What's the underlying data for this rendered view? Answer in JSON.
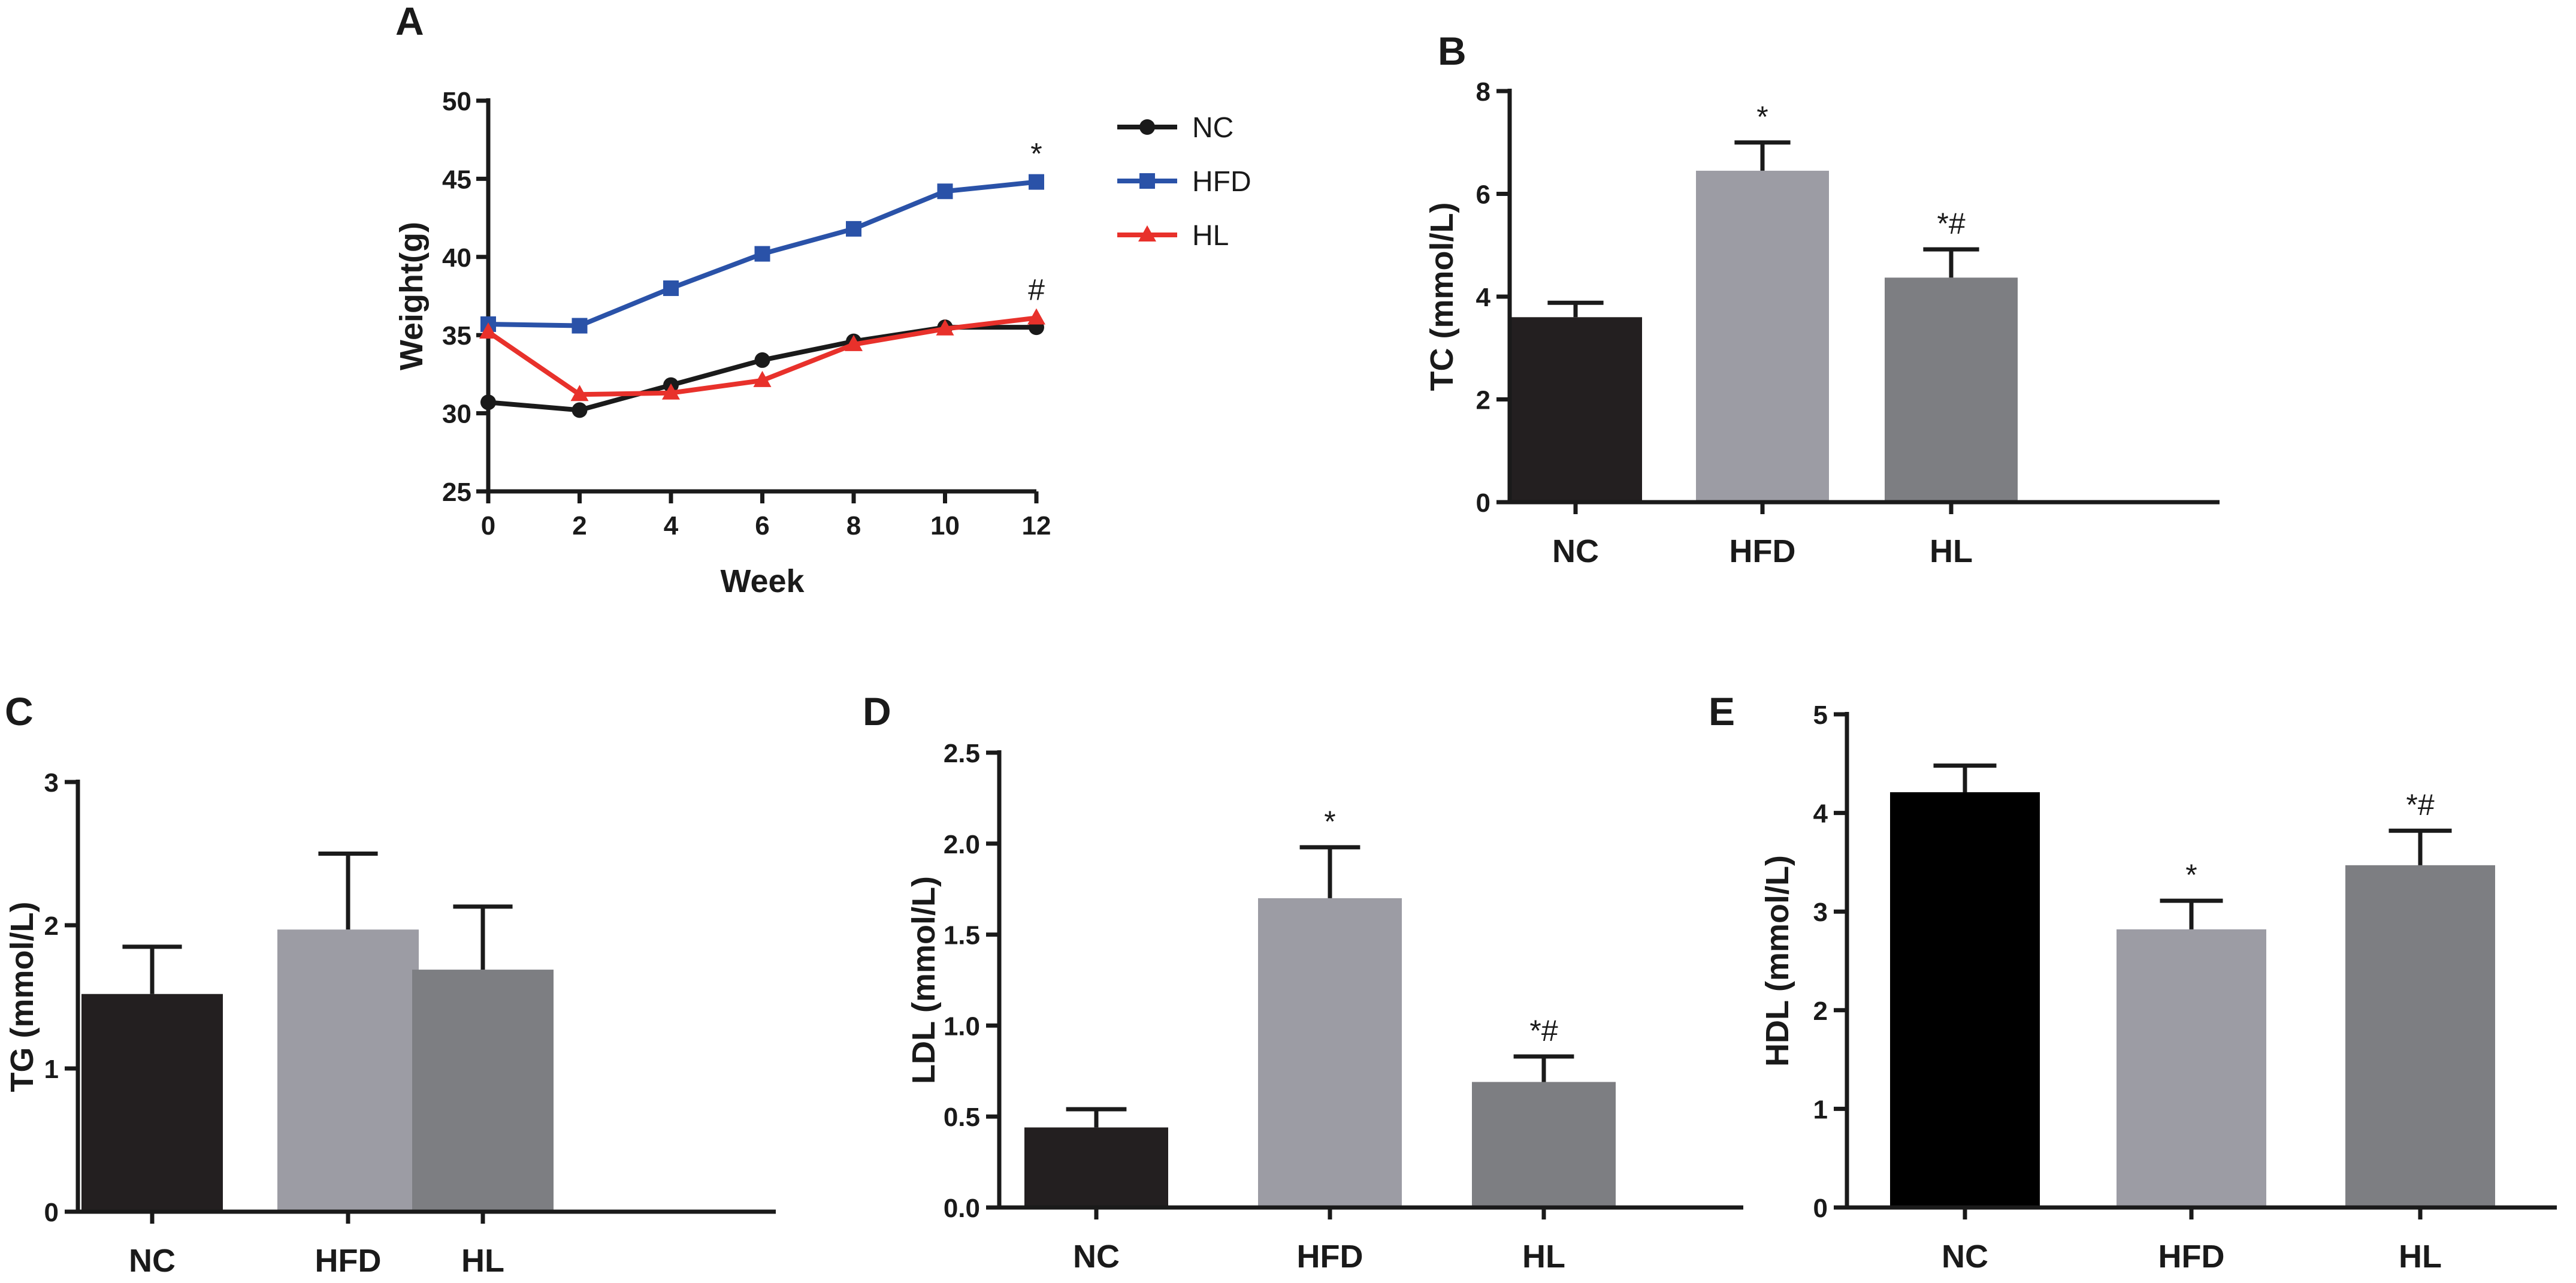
{
  "figure": {
    "panels": {
      "A": "A",
      "B": "B",
      "C": "C",
      "D": "D",
      "E": "E"
    }
  },
  "chart_data": [
    {
      "id": "A",
      "type": "line",
      "title": "",
      "xlabel": "Week",
      "ylabel": "Weight(g)",
      "xlim": [
        0,
        12
      ],
      "ylim": [
        25,
        50
      ],
      "x": [
        0,
        2,
        4,
        6,
        8,
        10,
        12
      ],
      "xticks": [
        "0",
        "2",
        "4",
        "6",
        "8",
        "10",
        "12"
      ],
      "yticks": [
        "25",
        "30",
        "35",
        "40",
        "45",
        "50"
      ],
      "legend_position": "right",
      "series": [
        {
          "name": "NC",
          "color": "#1a1a1a",
          "marker": "circle",
          "values": [
            30.7,
            30.2,
            31.8,
            33.4,
            34.6,
            35.5,
            35.5
          ]
        },
        {
          "name": "HFD",
          "color": "#2a52a8",
          "marker": "square",
          "values": [
            35.7,
            35.6,
            38.0,
            40.2,
            41.8,
            44.2,
            44.8
          ]
        },
        {
          "name": "HL",
          "color": "#e8312b",
          "marker": "triangle",
          "values": [
            35.2,
            31.2,
            31.3,
            32.1,
            34.4,
            35.4,
            36.1
          ]
        }
      ],
      "annotations": [
        {
          "x": 12,
          "y": 44.8,
          "text": "*"
        },
        {
          "x": 12,
          "y": 36.1,
          "text": "#"
        }
      ]
    },
    {
      "id": "B",
      "type": "bar",
      "categories": [
        "NC",
        "HFD",
        "HL"
      ],
      "values": [
        3.6,
        6.45,
        4.37
      ],
      "errors": [
        0.28,
        0.55,
        0.55
      ],
      "colors": [
        "#231f20",
        "#9c9ca4",
        "#7d7e82"
      ],
      "annotations": [
        "",
        "*",
        "*#"
      ],
      "title": "",
      "xlabel": "",
      "ylabel": "TC (mmol/L)",
      "ylim": [
        0,
        8
      ],
      "yticks": [
        "0",
        "2",
        "4",
        "6",
        "8"
      ]
    },
    {
      "id": "C",
      "type": "bar",
      "categories": [
        "NC",
        "HFD",
        "HL"
      ],
      "values": [
        1.52,
        1.97,
        1.69
      ],
      "errors": [
        0.33,
        0.53,
        0.44
      ],
      "colors": [
        "#231f20",
        "#9c9ca4",
        "#7d7e82"
      ],
      "annotations": [
        "",
        "",
        ""
      ],
      "title": "",
      "xlabel": "",
      "ylabel": "TG (mmol/L)",
      "ylim": [
        0,
        3
      ],
      "yticks": [
        "0",
        "1",
        "2",
        "3"
      ]
    },
    {
      "id": "D",
      "type": "bar",
      "categories": [
        "NC",
        "HFD",
        "HL"
      ],
      "values": [
        0.44,
        1.7,
        0.69
      ],
      "errors": [
        0.1,
        0.28,
        0.14
      ],
      "colors": [
        "#231f20",
        "#9c9ca4",
        "#7d7e82"
      ],
      "annotations": [
        "",
        "*",
        "*#"
      ],
      "title": "",
      "xlabel": "",
      "ylabel": "LDL (mmol/L)",
      "ylim": [
        0,
        2.5
      ],
      "yticks": [
        "0.0",
        "0.5",
        "1.0",
        "1.5",
        "2.0",
        "2.5"
      ]
    },
    {
      "id": "E",
      "type": "bar",
      "categories": [
        "NC",
        "HFD",
        "HL"
      ],
      "values": [
        4.21,
        2.82,
        3.47
      ],
      "errors": [
        0.27,
        0.29,
        0.35
      ],
      "colors": [
        "#000000",
        "#9c9ca4",
        "#7d7e82"
      ],
      "annotations": [
        "",
        "*",
        "*#"
      ],
      "title": "",
      "xlabel": "",
      "ylabel": "HDL (mmol/L)",
      "ylim": [
        0,
        5
      ],
      "yticks": [
        "0",
        "1",
        "2",
        "3",
        "4",
        "5"
      ]
    }
  ]
}
